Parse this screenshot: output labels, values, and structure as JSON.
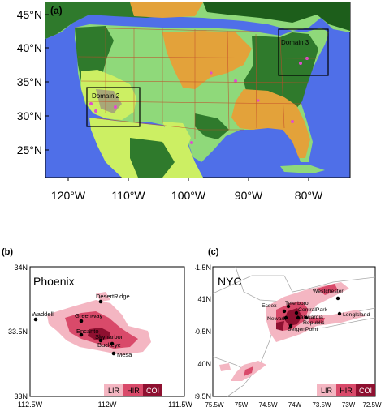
{
  "panel_a": {
    "label": "(a)",
    "lat_ticks": [
      "45°N",
      "40°N",
      "35°N",
      "30°N",
      "25°N"
    ],
    "lon_ticks": [
      "120°W",
      "110°W",
      "100°W",
      "90°W",
      "80°W"
    ],
    "domains": [
      "Domain 2",
      "Domain 3"
    ],
    "colors": {
      "ocean": "#4f6fe8",
      "grassland": "#8fd97a",
      "forest": "#2f7a2c",
      "dark_forest": "#1d5e1b",
      "cropland": "#e3a23a",
      "shrubland": "#ccef63",
      "barren": "#a8a878",
      "urban": "#e04ccf",
      "state_lines": "#c14a2a"
    }
  },
  "panel_b": {
    "label": "(b)",
    "city": "Phoenix",
    "lat_ticks": [
      "34N",
      "33.5N",
      "33N"
    ],
    "lon_ticks": [
      "112.5W",
      "112W",
      "111.5W"
    ],
    "places": [
      "DesertRidge",
      "Waddell",
      "Greenway",
      "Encanto",
      "Skyharbor",
      "Buckeye",
      "Mesa"
    ]
  },
  "panel_c": {
    "label": "(c)",
    "city": "NYC",
    "lat_ticks": [
      "41.5N",
      "41N",
      "40.5N",
      "40N",
      "39.5N"
    ],
    "lon_ticks": [
      "75.5W",
      "75W",
      "74.5W",
      "74W",
      "73.5W",
      "73W",
      "72.5W"
    ],
    "places": [
      "Westchester",
      "Essex",
      "Teterboro",
      "CentralPark",
      "Newark",
      "LaGuardia",
      "Republic",
      "LongIsland",
      "BergenPoint"
    ]
  },
  "legend": {
    "items": [
      "LIR",
      "HIR",
      "COI"
    ],
    "colors": [
      "#f4b6c2",
      "#d94a6a",
      "#8e1030"
    ]
  }
}
